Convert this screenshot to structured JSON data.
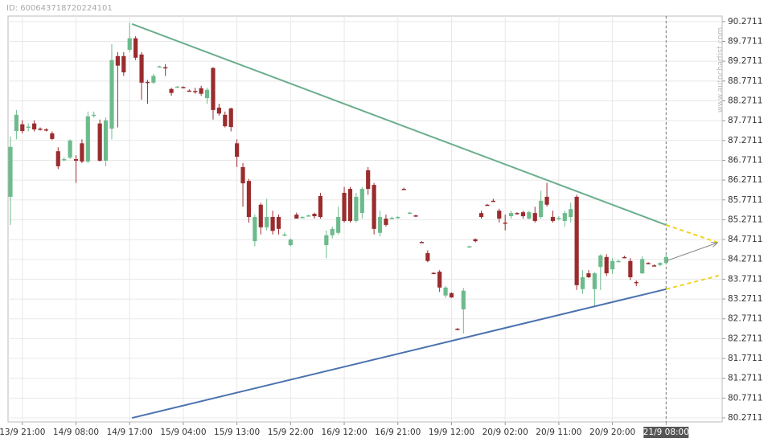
{
  "chart_data": {
    "type": "candlestick",
    "id_label": "ID: 600643718720224101",
    "watermark": "www.autochartist.com",
    "categories": [
      null,
      null,
      "13/9 21:00",
      null,
      null,
      null,
      null,
      null,
      null,
      null,
      null,
      "14/9 08:00",
      null,
      null,
      null,
      null,
      null,
      null,
      null,
      null,
      "14/9 17:00",
      null,
      null,
      null,
      null,
      null,
      null,
      null,
      null,
      "15/9 04:00",
      null,
      null,
      null,
      null,
      null,
      null,
      null,
      null,
      "15/9 13:00",
      null,
      null,
      null,
      null,
      null,
      null,
      null,
      null,
      "15/9 22:00",
      null,
      null,
      null,
      null,
      null,
      null,
      null,
      null,
      "16/9 12:00",
      null,
      null,
      null,
      null,
      null,
      null,
      null,
      null,
      "16/9 21:00",
      null,
      null,
      null,
      null,
      null,
      null,
      null,
      null,
      "19/9 12:00",
      null,
      null,
      null,
      null,
      null,
      null,
      null,
      null,
      "20/9 02:00",
      null,
      null,
      null,
      null,
      null,
      null,
      null,
      null,
      "20/9 11:00",
      null,
      null,
      null,
      null,
      null,
      null,
      null,
      null,
      "20/9 20:00",
      null,
      null,
      null,
      null,
      null,
      null,
      null,
      null,
      "21/9 08:00"
    ],
    "candles": [
      [
        85.85,
        87.37,
        85.14,
        87.11
      ],
      [
        87.51,
        88.04,
        87.3,
        87.92
      ],
      [
        87.68,
        87.78,
        87.45,
        87.51
      ],
      [
        87.6,
        87.7,
        87.5,
        87.62
      ],
      [
        87.7,
        87.78,
        87.5,
        87.55
      ],
      [
        87.57,
        87.6,
        87.52,
        87.56
      ],
      [
        87.55,
        87.58,
        87.5,
        87.53
      ],
      [
        87.45,
        87.5,
        87.28,
        87.31
      ],
      [
        87.0,
        87.1,
        86.55,
        86.62
      ],
      [
        86.8,
        86.85,
        86.75,
        86.8
      ],
      [
        86.84,
        87.3,
        86.8,
        87.27
      ],
      [
        86.8,
        86.9,
        86.2,
        86.76
      ],
      [
        87.2,
        87.3,
        86.7,
        86.74
      ],
      [
        86.74,
        88.0,
        86.7,
        87.88
      ],
      [
        87.9,
        88.0,
        87.85,
        87.92
      ],
      [
        87.7,
        87.8,
        86.74,
        86.76
      ],
      [
        86.76,
        87.85,
        86.62,
        87.78
      ],
      [
        87.57,
        89.7,
        87.3,
        89.3
      ],
      [
        89.4,
        89.5,
        87.6,
        89.16
      ],
      [
        89.4,
        89.5,
        88.9,
        88.99
      ],
      [
        89.56,
        90.24,
        89.5,
        89.85
      ],
      [
        89.85,
        89.9,
        89.3,
        89.36
      ],
      [
        89.44,
        89.5,
        88.3,
        88.73
      ],
      [
        88.75,
        88.8,
        88.2,
        88.72
      ],
      [
        88.73,
        88.95,
        88.7,
        88.9
      ],
      [
        89.14,
        89.16,
        89.12,
        89.14
      ],
      [
        89.12,
        89.2,
        88.9,
        89.1
      ],
      [
        88.57,
        88.6,
        88.4,
        88.47
      ],
      [
        88.63,
        88.65,
        88.6,
        88.63
      ],
      [
        88.62,
        88.64,
        88.6,
        88.61
      ],
      [
        88.53,
        88.56,
        88.5,
        88.52
      ],
      [
        88.52,
        88.6,
        88.45,
        88.5
      ],
      [
        88.59,
        88.65,
        88.4,
        88.45
      ],
      [
        88.34,
        88.6,
        88.2,
        88.55
      ],
      [
        89.1,
        89.12,
        87.8,
        88.04
      ],
      [
        88.1,
        88.2,
        87.9,
        87.95
      ],
      [
        87.92,
        88.0,
        87.6,
        87.63
      ],
      [
        88.08,
        88.1,
        87.5,
        87.61
      ],
      [
        87.2,
        87.3,
        86.6,
        86.86
      ],
      [
        86.6,
        86.7,
        85.6,
        86.19
      ],
      [
        86.25,
        86.3,
        85.2,
        85.34
      ],
      [
        84.73,
        85.4,
        84.6,
        85.34
      ],
      [
        85.65,
        85.7,
        84.9,
        85.08
      ],
      [
        85.08,
        85.8,
        85.0,
        85.34
      ],
      [
        85.34,
        85.5,
        84.9,
        84.99
      ],
      [
        85.34,
        85.4,
        84.9,
        85.04
      ],
      [
        84.9,
        84.95,
        84.85,
        84.9
      ],
      [
        84.63,
        84.8,
        84.6,
        84.77
      ],
      [
        85.4,
        85.45,
        85.3,
        85.3
      ],
      [
        85.34,
        85.36,
        85.32,
        85.34
      ],
      [
        85.38,
        85.4,
        85.36,
        85.38
      ],
      [
        85.42,
        85.45,
        85.3,
        85.36
      ],
      [
        85.87,
        85.95,
        85.3,
        85.34
      ],
      [
        84.63,
        85.0,
        84.3,
        84.88
      ],
      [
        84.88,
        85.1,
        84.8,
        85.04
      ],
      [
        84.94,
        85.6,
        84.9,
        85.34
      ],
      [
        85.95,
        86.1,
        85.2,
        85.24
      ],
      [
        86.05,
        86.1,
        85.2,
        85.24
      ],
      [
        85.24,
        85.95,
        85.2,
        85.85
      ],
      [
        85.44,
        86.1,
        85.3,
        86.05
      ],
      [
        86.52,
        86.6,
        85.9,
        86.05
      ],
      [
        86.15,
        86.2,
        84.9,
        85.04
      ],
      [
        84.94,
        85.5,
        84.85,
        85.34
      ],
      [
        85.3,
        85.4,
        85.1,
        85.14
      ],
      [
        85.3,
        85.35,
        85.28,
        85.32
      ],
      [
        85.32,
        85.36,
        85.3,
        85.34
      ],
      [
        86.05,
        86.08,
        86.02,
        86.04
      ],
      [
        85.44,
        85.47,
        85.42,
        85.45
      ],
      [
        85.38,
        85.4,
        85.34,
        85.36
      ],
      [
        84.71,
        84.73,
        84.69,
        84.7
      ],
      [
        84.43,
        84.5,
        84.2,
        84.23
      ],
      [
        83.93,
        83.95,
        83.9,
        83.91
      ],
      [
        83.96,
        84.0,
        83.45,
        83.56
      ],
      [
        83.36,
        83.6,
        83.3,
        83.56
      ],
      [
        83.42,
        83.44,
        83.3,
        83.31
      ],
      [
        82.52,
        82.54,
        82.48,
        82.5
      ],
      [
        83.01,
        83.55,
        82.4,
        83.48
      ],
      [
        84.6,
        84.62,
        84.58,
        84.6
      ],
      [
        84.78,
        84.8,
        84.7,
        84.73
      ],
      [
        85.44,
        85.5,
        85.3,
        85.34
      ],
      [
        85.65,
        85.67,
        85.63,
        85.64
      ],
      [
        85.75,
        85.8,
        85.72,
        85.74
      ],
      [
        85.5,
        85.55,
        85.2,
        85.3
      ],
      [
        85.2,
        85.4,
        85.0,
        85.18
      ],
      [
        85.36,
        85.5,
        85.3,
        85.44
      ],
      [
        85.44,
        85.46,
        85.4,
        85.43
      ],
      [
        85.46,
        85.5,
        85.3,
        85.36
      ],
      [
        85.3,
        85.5,
        85.28,
        85.46
      ],
      [
        85.44,
        85.6,
        85.2,
        85.24
      ],
      [
        85.34,
        86.0,
        85.3,
        85.75
      ],
      [
        85.85,
        86.2,
        85.6,
        85.65
      ],
      [
        85.34,
        85.5,
        85.2,
        85.24
      ],
      [
        85.3,
        85.36,
        85.25,
        85.32
      ],
      [
        85.24,
        85.5,
        85.1,
        85.44
      ],
      [
        85.34,
        85.7,
        85.2,
        85.54
      ],
      [
        85.85,
        85.9,
        83.5,
        83.62
      ],
      [
        83.52,
        84.0,
        83.4,
        83.82
      ],
      [
        83.92,
        84.0,
        83.8,
        83.82
      ],
      [
        83.52,
        83.95,
        83.1,
        83.92
      ],
      [
        84.08,
        84.4,
        83.5,
        84.37
      ],
      [
        84.33,
        84.4,
        83.85,
        83.92
      ],
      [
        84.02,
        84.3,
        83.9,
        84.23
      ],
      [
        84.23,
        84.26,
        84.2,
        84.23
      ],
      [
        84.33,
        84.36,
        84.3,
        84.32
      ],
      [
        84.23,
        84.3,
        83.75,
        83.82
      ],
      [
        83.7,
        83.74,
        83.6,
        83.68
      ],
      [
        83.92,
        84.35,
        83.9,
        84.28
      ],
      [
        84.18,
        84.2,
        84.15,
        84.17
      ],
      [
        84.12,
        84.14,
        84.1,
        84.11
      ],
      [
        84.13,
        84.2,
        84.1,
        84.18
      ],
      [
        84.18,
        84.4,
        84.15,
        84.33
      ]
    ],
    "up_color": "#6dbb8c",
    "down_color": "#9a2c2e",
    "xlim": [
      -0.4,
      119.4
    ],
    "ylim": [
      80.17,
      90.41
    ],
    "yticks": [
      90.2711,
      89.7711,
      89.2711,
      88.7711,
      88.2711,
      87.7711,
      87.2711,
      86.7711,
      86.2711,
      85.7711,
      85.2711,
      84.7711,
      84.2711,
      83.7711,
      83.2711,
      82.7711,
      82.2711,
      81.7711,
      81.2711,
      80.7711,
      80.2711
    ],
    "grid": true,
    "trendlines": [
      {
        "color": "#6aae8d",
        "x": [
          20.4,
          110
        ],
        "y": [
          90.21,
          85.14
        ]
      },
      {
        "color": "#4a72ae",
        "x": [
          20.4,
          110
        ],
        "y": [
          80.27,
          83.52
        ]
      }
    ],
    "projections": {
      "color": "#f2d21b",
      "lines": [
        {
          "x": [
            110,
            118.8
          ],
          "y": [
            85.14,
            84.69
          ]
        },
        {
          "x": [
            110,
            118.8
          ],
          "y": [
            83.52,
            83.86
          ]
        }
      ]
    },
    "forecast_arrow": {
      "color": "#888888",
      "x": [
        110,
        118.6
      ],
      "y": [
        84.23,
        84.69
      ]
    },
    "current_index": 110
  }
}
